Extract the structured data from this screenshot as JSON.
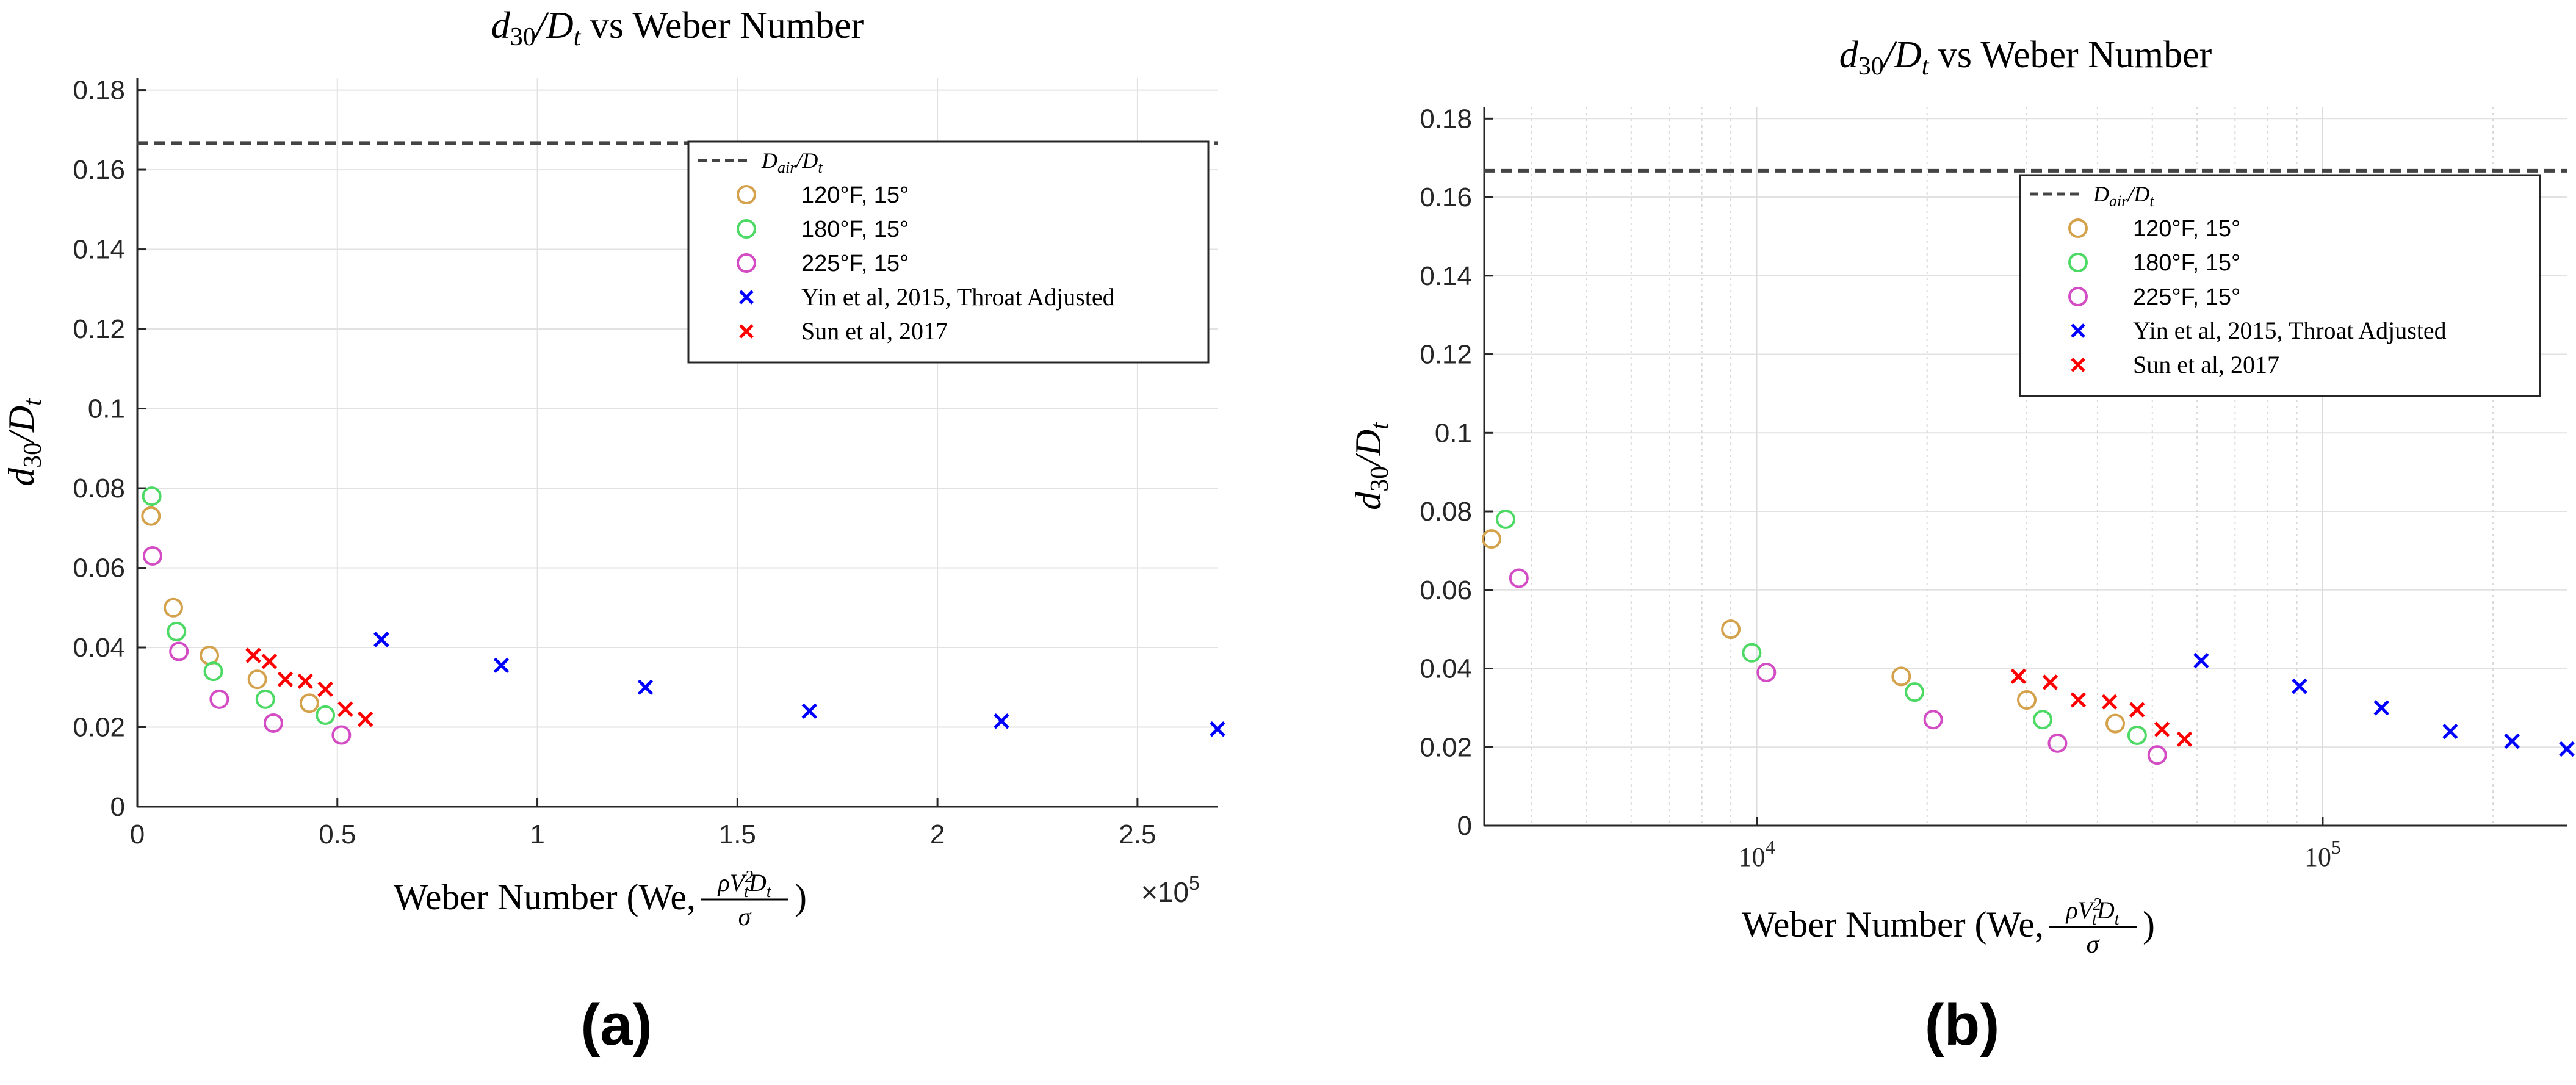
{
  "panels": [
    {
      "label": "(a)",
      "title": {
        "prefix": "d",
        "prefix_sub": "30",
        "mid": "/D",
        "mid_sub": "t",
        "suffix": " vs Weber Number"
      },
      "xlabel": {
        "text": "Weber Number (We, ",
        "num": "ρV",
        "num_sup": "2",
        "num_sub": "t",
        "num_tail": "D",
        "num_tail_sub": "t",
        "den": "σ",
        "close": ")"
      },
      "ylabel": {
        "d": "d",
        "d_sub": "30",
        "slash": "/D",
        "D_sub": "t"
      },
      "exponent": {
        "base": "×10",
        "power": "5"
      }
    },
    {
      "label": "(b)",
      "title": {
        "prefix": "d",
        "prefix_sub": "30",
        "mid": "/D",
        "mid_sub": "t",
        "suffix": " vs Weber Number"
      },
      "xlabel": {
        "text": "Weber Number (We, ",
        "num": "ρV",
        "num_sup": "2",
        "num_sub": "t",
        "num_tail": "D",
        "num_tail_sub": "t",
        "den": "σ",
        "close": ")"
      },
      "ylabel": {
        "d": "d",
        "d_sub": "30",
        "slash": "/D",
        "D_sub": "t"
      },
      "exponent": null
    }
  ],
  "chart_data": [
    {
      "type": "scatter",
      "x_scale": "linear",
      "xlim": [
        0,
        270000
      ],
      "ylim": [
        0,
        0.183
      ],
      "xticks": [
        0,
        50000,
        100000,
        150000,
        200000,
        250000
      ],
      "xtick_labels": [
        "0",
        "0.5",
        "1",
        "1.5",
        "2",
        "2.5"
      ],
      "yticks": [
        0,
        0.02,
        0.04,
        0.06,
        0.08,
        0.1,
        0.12,
        0.14,
        0.16,
        0.18
      ],
      "ytick_labels": [
        "0",
        "0.02",
        "0.04",
        "0.06",
        "0.08",
        "0.1",
        "0.12",
        "0.14",
        "0.16",
        "0.18"
      ],
      "grid": true,
      "legend_position": "top-right",
      "reference_line": {
        "name": "D_air/D_t",
        "y": 0.1667,
        "style": "dashed",
        "color": "#444444"
      },
      "series": [
        {
          "name": "120°F, 15°",
          "marker": "circle",
          "color": "#D4A24C",
          "x": [
            3400,
            9000,
            18000,
            30000,
            43000
          ],
          "y": [
            0.073,
            0.05,
            0.038,
            0.032,
            0.026
          ]
        },
        {
          "name": "180°F, 15°",
          "marker": "circle",
          "color": "#4CD964",
          "x": [
            3600,
            9800,
            19000,
            32000,
            47000
          ],
          "y": [
            0.078,
            0.044,
            0.034,
            0.027,
            0.023
          ]
        },
        {
          "name": "225°F, 15°",
          "marker": "circle",
          "color": "#D44CC4",
          "x": [
            3800,
            10400,
            20500,
            34000,
            51000
          ],
          "y": [
            0.063,
            0.039,
            0.027,
            0.021,
            0.018
          ]
        },
        {
          "name": "Yin et al, 2015, Throat Adjusted",
          "marker": "x",
          "color": "#0000FF",
          "x": [
            61000,
            91000,
            127000,
            168000,
            216000,
            270000
          ],
          "y": [
            0.042,
            0.0355,
            0.03,
            0.024,
            0.0215,
            0.0195
          ]
        },
        {
          "name": "Sun et al, 2017",
          "marker": "x",
          "color": "#FF0000",
          "x": [
            29000,
            33000,
            37000,
            42000,
            47000,
            52000,
            57000
          ],
          "y": [
            0.038,
            0.0365,
            0.032,
            0.0315,
            0.0295,
            0.0245,
            0.022
          ]
        }
      ]
    },
    {
      "type": "scatter",
      "x_scale": "log",
      "xlim": [
        3300,
        270000
      ],
      "ylim": [
        0,
        0.183
      ],
      "xticks": [
        10000,
        100000
      ],
      "xtick_labels": [
        {
          "base": "10",
          "power": "4"
        },
        {
          "base": "10",
          "power": "5"
        }
      ],
      "yticks": [
        0,
        0.02,
        0.04,
        0.06,
        0.08,
        0.1,
        0.12,
        0.14,
        0.16,
        0.18
      ],
      "ytick_labels": [
        "0",
        "0.02",
        "0.04",
        "0.06",
        "0.08",
        "0.1",
        "0.12",
        "0.14",
        "0.16",
        "0.18"
      ],
      "grid": true,
      "legend_position": "top-right",
      "reference_line": {
        "name": "D_air/D_t",
        "y": 0.1667,
        "style": "dashed",
        "color": "#444444"
      },
      "series": [
        {
          "name": "120°F, 15°",
          "marker": "circle",
          "color": "#D4A24C",
          "x": [
            3400,
            9000,
            18000,
            30000,
            43000
          ],
          "y": [
            0.073,
            0.05,
            0.038,
            0.032,
            0.026
          ]
        },
        {
          "name": "180°F, 15°",
          "marker": "circle",
          "color": "#4CD964",
          "x": [
            3600,
            9800,
            19000,
            32000,
            47000
          ],
          "y": [
            0.078,
            0.044,
            0.034,
            0.027,
            0.023
          ]
        },
        {
          "name": "225°F, 15°",
          "marker": "circle",
          "color": "#D44CC4",
          "x": [
            3800,
            10400,
            20500,
            34000,
            51000
          ],
          "y": [
            0.063,
            0.039,
            0.027,
            0.021,
            0.018
          ]
        },
        {
          "name": "Yin et al, 2015, Throat Adjusted",
          "marker": "x",
          "color": "#0000FF",
          "x": [
            61000,
            91000,
            127000,
            168000,
            216000,
            270000
          ],
          "y": [
            0.042,
            0.0355,
            0.03,
            0.024,
            0.0215,
            0.0195
          ]
        },
        {
          "name": "Sun et al, 2017",
          "marker": "x",
          "color": "#FF0000",
          "x": [
            29000,
            33000,
            37000,
            42000,
            47000,
            52000,
            57000
          ],
          "y": [
            0.038,
            0.0365,
            0.032,
            0.0315,
            0.0295,
            0.0245,
            0.022
          ]
        }
      ]
    }
  ]
}
